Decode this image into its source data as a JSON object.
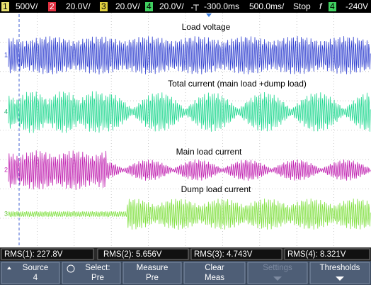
{
  "status": {
    "channels": [
      {
        "num": "1",
        "scale": "500V/"
      },
      {
        "num": "2",
        "scale": "20.0V/"
      },
      {
        "num": "3",
        "scale": "20.0V/"
      },
      {
        "num": "4",
        "scale": "20.0V/"
      }
    ],
    "time_offset": "-300.0ms",
    "time_scale": "500.0ms/",
    "run_state": "Stop",
    "trigger_slope": "f",
    "trigger_source": "4",
    "trigger_level": "-240V"
  },
  "traces": [
    {
      "marker": "1",
      "label": "Load voltage"
    },
    {
      "marker": "4",
      "label": "Total current (main load +dump load)"
    },
    {
      "marker": "2",
      "label": "Main load current"
    },
    {
      "marker": "3",
      "label": "Dump load current"
    }
  ],
  "measurements": [
    "RMS(1): 227.8V",
    "RMS(2): 5.656V",
    "RMS(3): 4.743V",
    "RMS(4): 8.321V"
  ],
  "softkeys": [
    {
      "line1": "Source",
      "line2": "4"
    },
    {
      "line1": "Select:",
      "line2": "Pre"
    },
    {
      "line1": "Measure",
      "line2": "Pre"
    },
    {
      "line1": "Clear",
      "line2": "Meas"
    },
    {
      "line1": "Settings"
    },
    {
      "line1": "Thresholds"
    }
  ]
}
